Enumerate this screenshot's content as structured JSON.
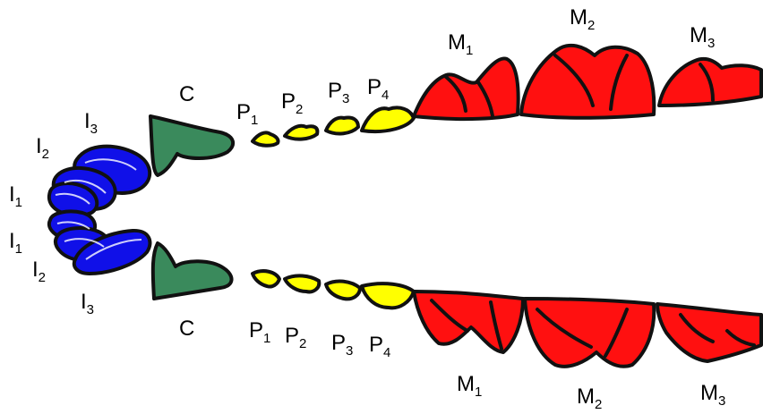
{
  "colors": {
    "incisor": "#1010e8",
    "canine": "#3a8a5c",
    "premolar": "#ffff00",
    "molar": "#ff1010",
    "outline": "#111111"
  },
  "labels": {
    "upper": {
      "I3": {
        "base": "I",
        "sub": "3"
      },
      "I2": {
        "base": "I",
        "sub": "2"
      },
      "I1": {
        "base": "I",
        "sub": "1"
      },
      "C": {
        "base": "C",
        "sub": ""
      },
      "P1": {
        "base": "P",
        "sub": "1"
      },
      "P2": {
        "base": "P",
        "sub": "2"
      },
      "P3": {
        "base": "P",
        "sub": "3"
      },
      "P4": {
        "base": "P",
        "sub": "4"
      },
      "M1": {
        "base": "M",
        "sub": "1"
      },
      "M2": {
        "base": "M",
        "sub": "2"
      },
      "M3": {
        "base": "M",
        "sub": "3"
      }
    },
    "lower": {
      "I1": {
        "base": "I",
        "sub": "1"
      },
      "I2": {
        "base": "I",
        "sub": "2"
      },
      "I3": {
        "base": "I",
        "sub": "3"
      },
      "C": {
        "base": "C",
        "sub": ""
      },
      "P1": {
        "base": "P",
        "sub": "1"
      },
      "P2": {
        "base": "P",
        "sub": "2"
      },
      "P3": {
        "base": "P",
        "sub": "3"
      },
      "P4": {
        "base": "P",
        "sub": "4"
      },
      "M1": {
        "base": "M",
        "sub": "1"
      },
      "M2": {
        "base": "M",
        "sub": "2"
      },
      "M3": {
        "base": "M",
        "sub": "3"
      }
    }
  }
}
